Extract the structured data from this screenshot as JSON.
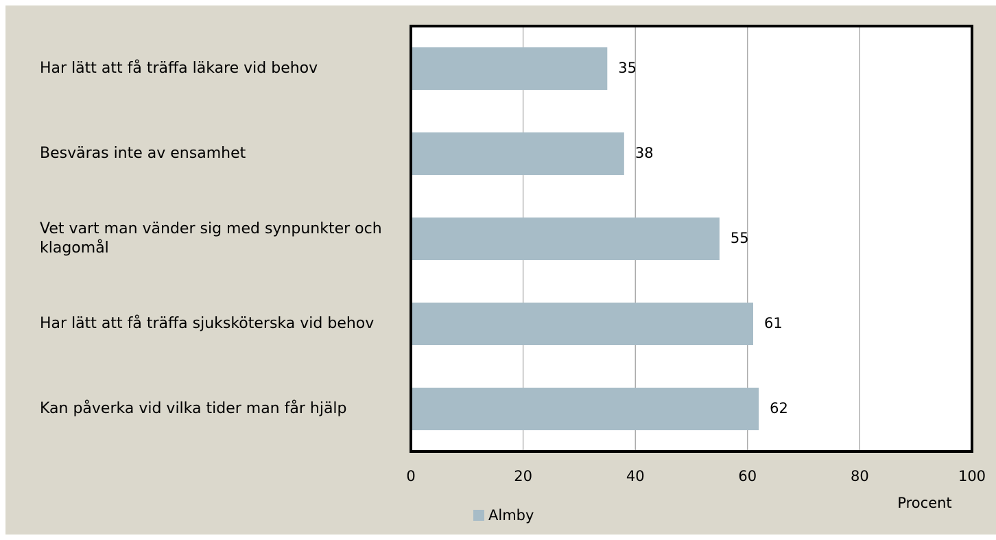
{
  "chart_data": {
    "type": "bar",
    "orientation": "horizontal",
    "categories": [
      "Har lätt att få träffa läkare vid behov",
      "Besväras inte av ensamhet",
      "Vet vart man vänder sig med synpunkter och klagomål",
      "Har lätt att få träffa sjuksköterska vid behov",
      "Kan påverka vid vilka tider man får hjälp"
    ],
    "series": [
      {
        "name": "Almby",
        "color": "#a7bcc7",
        "values": [
          35,
          38,
          55,
          61,
          62
        ]
      }
    ],
    "xlim": [
      0,
      100
    ],
    "xticks": [
      0,
      20,
      40,
      60,
      80,
      100
    ],
    "xlabel": "Procent",
    "grid": true
  }
}
